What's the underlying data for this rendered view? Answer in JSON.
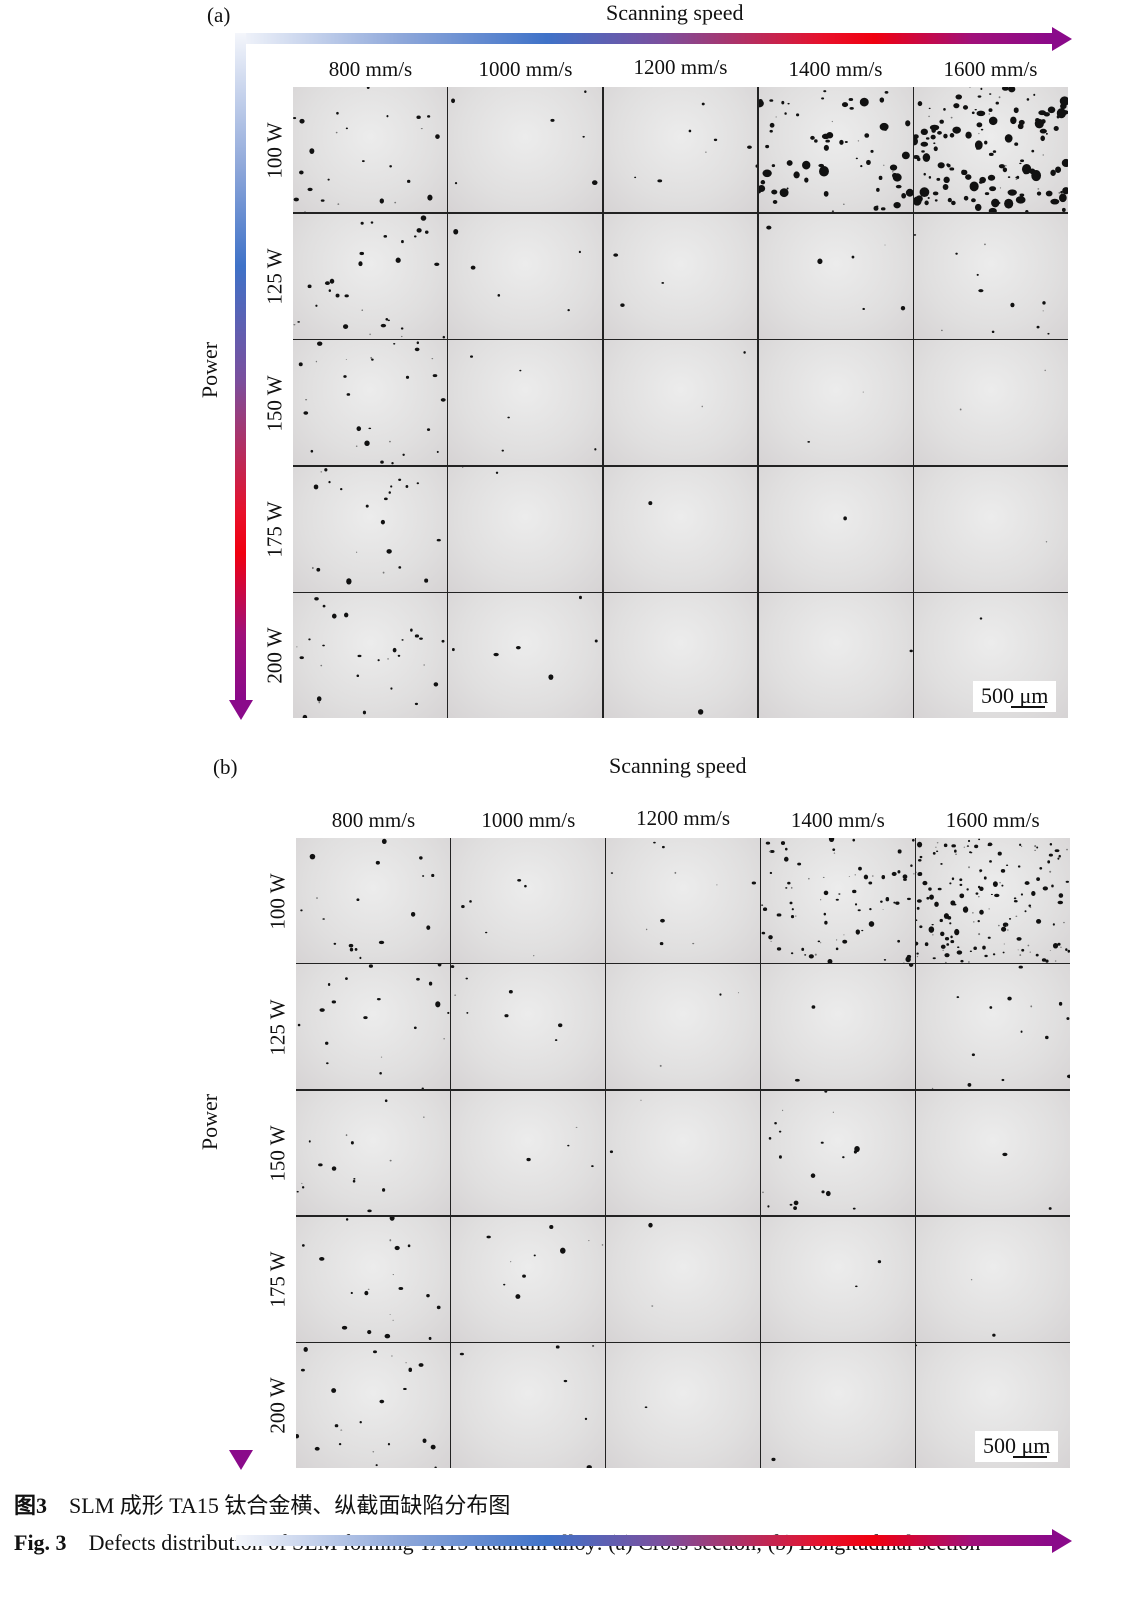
{
  "panels": [
    {
      "label": "(a)",
      "x_axis_title": "Scanning speed",
      "y_axis_title": "Power",
      "columns": [
        "800 mm/s",
        "1000 mm/s",
        "1200 mm/s",
        "1400 mm/s",
        "1600 mm/s"
      ],
      "rows": [
        "100 W",
        "125 W",
        "150 W",
        "175 W",
        "200 W"
      ],
      "scale_bar": "500 μm"
    },
    {
      "label": "(b)",
      "x_axis_title": "Scanning speed",
      "y_axis_title": "Power",
      "columns": [
        "800 mm/s",
        "1000 mm/s",
        "1200 mm/s",
        "1400 mm/s",
        "1600 mm/s"
      ],
      "rows": [
        "100 W",
        "125 W",
        "150 W",
        "175 W",
        "200 W"
      ],
      "scale_bar": "500 μm"
    }
  ],
  "caption": {
    "cn_label": "图3",
    "cn_text": "SLM 成形 TA15 钛合金横、纵截面缺陷分布图",
    "en_label": "Fig. 3",
    "en_text": "Defects distribution of SLM forming TA15 titanium alloy: (a) Cross section; (b) Longitudinal section"
  },
  "colors": {
    "arrow_start": "#f4f6fb",
    "arrow_blue": "#3f72c8",
    "arrow_red": "#f00010",
    "arrow_end": "#8a0a8a"
  }
}
